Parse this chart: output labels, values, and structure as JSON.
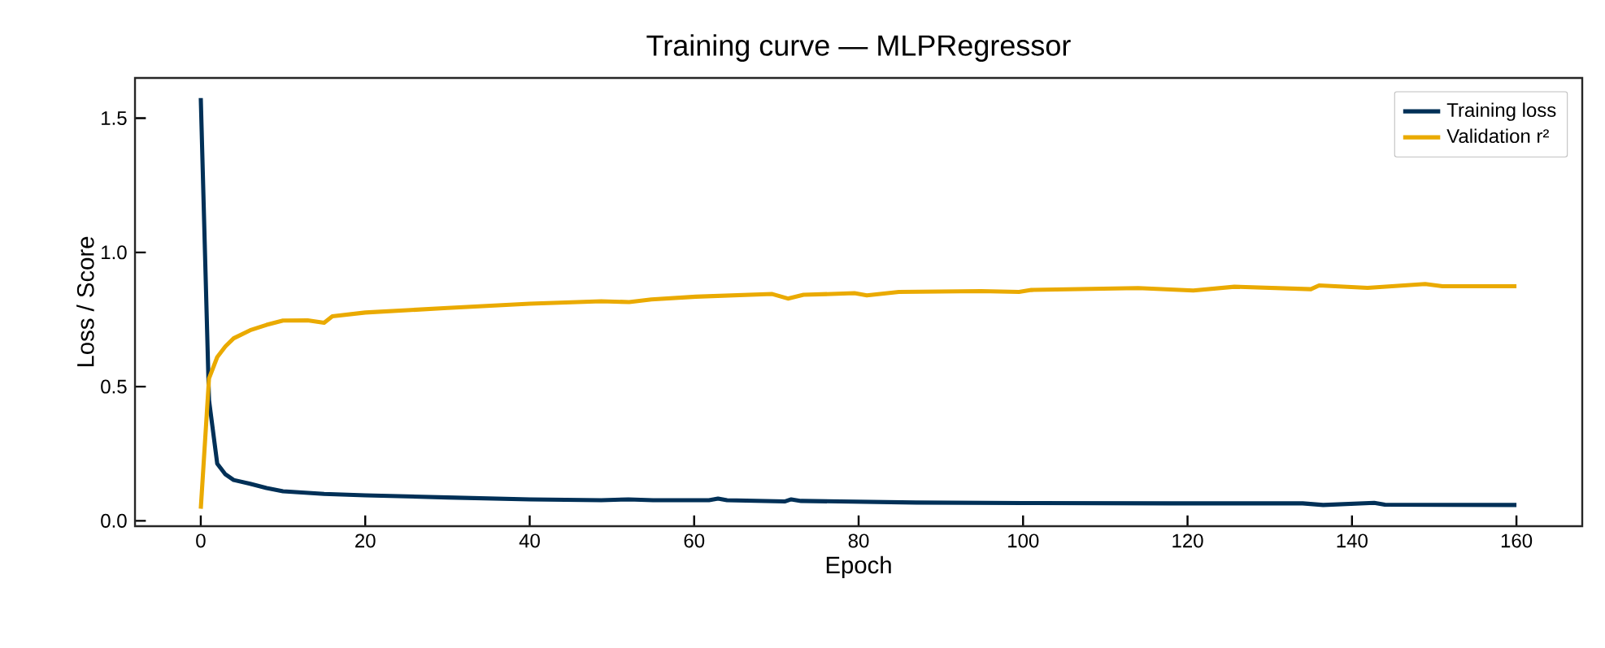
{
  "chart_data": {
    "type": "line",
    "title": "Training curve — MLPRegressor",
    "xlabel": "Epoch",
    "ylabel": "Loss / Score",
    "xlim": [
      -8,
      168
    ],
    "ylim": [
      -0.02,
      1.65
    ],
    "xticks": [
      0,
      20,
      40,
      60,
      80,
      100,
      120,
      140,
      160
    ],
    "yticks": [
      {
        "value": 0,
        "label": "0.0"
      },
      {
        "value": 0.5,
        "label": "0.5"
      },
      {
        "value": 1.0,
        "label": "1.0"
      },
      {
        "value": 1.5,
        "label": "1.5"
      }
    ],
    "legend": "top right",
    "series": [
      {
        "name": "Training loss",
        "color": "#003057",
        "x": [
          0,
          1,
          2,
          3,
          4,
          6,
          8,
          10,
          15,
          20,
          30,
          40,
          48.7,
          52,
          55,
          61.8,
          62.9,
          64,
          71,
          71.8,
          73,
          87,
          100,
          118,
          134,
          136.5,
          142.7,
          144,
          160
        ],
        "values": [
          1.575,
          0.45,
          0.213,
          0.173,
          0.152,
          0.138,
          0.122,
          0.11,
          0.1,
          0.095,
          0.087,
          0.08,
          0.077,
          0.08,
          0.077,
          0.077,
          0.083,
          0.077,
          0.072,
          0.08,
          0.074,
          0.068,
          0.066,
          0.065,
          0.065,
          0.059,
          0.067,
          0.06,
          0.059
        ]
      },
      {
        "name": "Validation r²",
        "color": "#eaaa00",
        "x": [
          0,
          1,
          2,
          3,
          4,
          6,
          8,
          10,
          13,
          15,
          16,
          20,
          30,
          40,
          48.7,
          52.1,
          54.8,
          60.2,
          69.5,
          71.4,
          73.3,
          79.5,
          81,
          84.9,
          94.9,
          99.5,
          101,
          114,
          120.7,
          125.7,
          135,
          136,
          141.9,
          148.9,
          151,
          160
        ],
        "values": [
          0.045,
          0.53,
          0.61,
          0.65,
          0.68,
          0.71,
          0.73,
          0.746,
          0.747,
          0.738,
          0.762,
          0.776,
          0.793,
          0.809,
          0.818,
          0.815,
          0.825,
          0.835,
          0.845,
          0.828,
          0.842,
          0.848,
          0.84,
          0.853,
          0.856,
          0.853,
          0.86,
          0.867,
          0.858,
          0.872,
          0.863,
          0.877,
          0.868,
          0.882,
          0.874,
          0.874
        ]
      }
    ]
  }
}
